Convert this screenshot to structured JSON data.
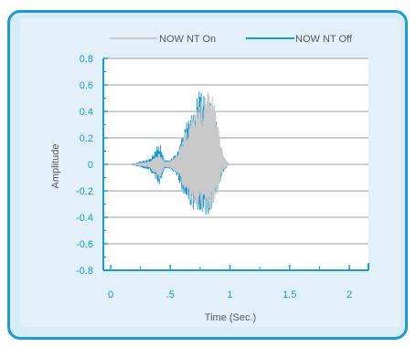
{
  "chart_data": {
    "type": "line",
    "title": "",
    "xlabel": "Time (Sec.)",
    "ylabel": "Amplitude",
    "xlim": [
      -0.05,
      2.15
    ],
    "ylim": [
      -0.85,
      0.8
    ],
    "x_ticks": [
      0,
      0.5,
      1,
      1.5,
      2
    ],
    "x_tick_labels": [
      "0",
      ".5",
      "1",
      "1.5",
      "2"
    ],
    "y_ticks": [
      0.8,
      0.6,
      0.4,
      0.2,
      0,
      -0.2,
      -0.4,
      -0.6,
      -0.8
    ],
    "y_tick_labels": [
      "0.8",
      "0.6",
      "0.4",
      "0.2",
      "0",
      "-0.2",
      "-0.4",
      "-0.6",
      "-0.8"
    ],
    "grid": "horizontal",
    "legend_position": "top",
    "series": [
      {
        "name": "NOW NT On",
        "color": "#c9c9c9",
        "envelope": [
          [
            0.19,
            0
          ],
          [
            0.25,
            0.01
          ],
          [
            0.33,
            0.02
          ],
          [
            0.41,
            0.08
          ],
          [
            0.45,
            0.02
          ],
          [
            0.5,
            0.02
          ],
          [
            0.56,
            0.08
          ],
          [
            0.6,
            0.18
          ],
          [
            0.65,
            0.3
          ],
          [
            0.7,
            0.38
          ],
          [
            0.74,
            0.46
          ],
          [
            0.78,
            0.5
          ],
          [
            0.82,
            0.55
          ],
          [
            0.86,
            0.5
          ],
          [
            0.9,
            0.3
          ],
          [
            0.94,
            0.08
          ],
          [
            0.98,
            0.01
          ]
        ],
        "envelope_neg": [
          [
            0.19,
            0
          ],
          [
            0.25,
            -0.01
          ],
          [
            0.33,
            -0.02
          ],
          [
            0.41,
            -0.12
          ],
          [
            0.45,
            -0.02
          ],
          [
            0.5,
            -0.02
          ],
          [
            0.56,
            -0.07
          ],
          [
            0.6,
            -0.15
          ],
          [
            0.65,
            -0.25
          ],
          [
            0.7,
            -0.3
          ],
          [
            0.74,
            -0.34
          ],
          [
            0.78,
            -0.36
          ],
          [
            0.82,
            -0.38
          ],
          [
            0.86,
            -0.3
          ],
          [
            0.9,
            -0.18
          ],
          [
            0.94,
            -0.05
          ],
          [
            0.98,
            -0.01
          ]
        ]
      },
      {
        "name": "NOW NT Off",
        "color": "#1a9ad6",
        "envelope": [
          [
            0.18,
            0
          ],
          [
            0.25,
            0.02
          ],
          [
            0.33,
            0.04
          ],
          [
            0.41,
            0.17
          ],
          [
            0.45,
            0.03
          ],
          [
            0.5,
            0.03
          ],
          [
            0.56,
            0.1
          ],
          [
            0.6,
            0.22
          ],
          [
            0.65,
            0.36
          ],
          [
            0.7,
            0.42
          ],
          [
            0.74,
            0.57
          ],
          [
            0.78,
            0.52
          ],
          [
            0.82,
            0.57
          ],
          [
            0.86,
            0.45
          ],
          [
            0.9,
            0.25
          ],
          [
            0.94,
            0.07
          ],
          [
            0.98,
            0.01
          ]
        ],
        "envelope_neg": [
          [
            0.18,
            0
          ],
          [
            0.25,
            -0.02
          ],
          [
            0.33,
            -0.04
          ],
          [
            0.41,
            -0.16
          ],
          [
            0.45,
            -0.03
          ],
          [
            0.5,
            -0.03
          ],
          [
            0.56,
            -0.09
          ],
          [
            0.6,
            -0.2
          ],
          [
            0.65,
            -0.3
          ],
          [
            0.7,
            -0.36
          ],
          [
            0.74,
            -0.34
          ],
          [
            0.78,
            -0.38
          ],
          [
            0.82,
            -0.42
          ],
          [
            0.86,
            -0.33
          ],
          [
            0.9,
            -0.2
          ],
          [
            0.94,
            -0.06
          ],
          [
            0.98,
            -0.01
          ]
        ]
      }
    ]
  }
}
